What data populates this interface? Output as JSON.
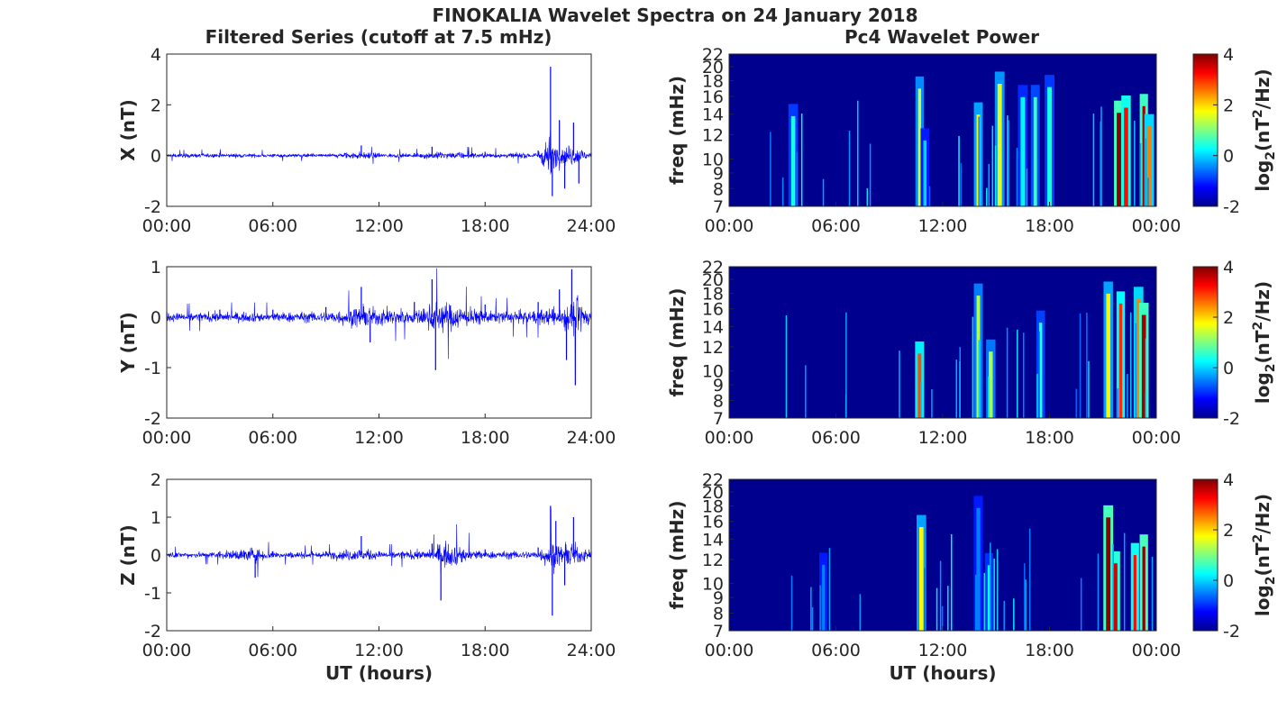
{
  "figure_title": "FINOKALIA Wavelet Spectra on 24 January 2018",
  "left_column_title": "Filtered Series (cutoff at 7.5 mHz)",
  "right_column_title": "Pc4 Wavelet Power",
  "colors": {
    "series": "#0000ff",
    "axis": "#262626",
    "background": "#00008f"
  },
  "chart_data": [
    {
      "type": "line",
      "title": "",
      "xlabel": "",
      "ylabel": "X (nT)",
      "x_ticks": [
        "00:00",
        "06:00",
        "12:00",
        "18:00",
        "24:00"
      ],
      "y_ticks": [
        "-2",
        "0",
        "2",
        "4"
      ],
      "ylim": [
        -2,
        4
      ],
      "xlim_hours": [
        0,
        24
      ],
      "series": [
        {
          "values_hours_nT": [
            [
              0,
              0.05
            ],
            [
              3,
              0.1
            ],
            [
              6,
              0.05
            ],
            [
              9,
              0.05
            ],
            [
              11,
              0.4
            ],
            [
              12,
              0.1
            ],
            [
              14,
              0.1
            ],
            [
              15,
              0.35
            ],
            [
              18,
              0.15
            ],
            [
              21,
              0.2
            ],
            [
              21.7,
              3.5
            ],
            [
              21.8,
              -1.6
            ],
            [
              22.2,
              1.4
            ],
            [
              22.5,
              -1.3
            ],
            [
              23,
              1.3
            ],
            [
              23.3,
              -1.1
            ],
            [
              24,
              0.1
            ]
          ]
        }
      ]
    },
    {
      "type": "line",
      "title": "",
      "xlabel": "",
      "ylabel": "Y (nT)",
      "x_ticks": [
        "00:00",
        "06:00",
        "12:00",
        "18:00",
        "24:00"
      ],
      "y_ticks": [
        "-2",
        "-1",
        "0",
        "1"
      ],
      "ylim": [
        -2,
        1
      ],
      "xlim_hours": [
        0,
        24
      ],
      "series": [
        {
          "values_hours_nT": [
            [
              0,
              0.1
            ],
            [
              3,
              0.15
            ],
            [
              6,
              0.15
            ],
            [
              9,
              0.2
            ],
            [
              11,
              0.6
            ],
            [
              11.5,
              -0.5
            ],
            [
              14,
              0.3
            ],
            [
              15,
              0.75
            ],
            [
              15.2,
              -1.05
            ],
            [
              18,
              0.25
            ],
            [
              21,
              0.3
            ],
            [
              22.2,
              0.55
            ],
            [
              22.6,
              -0.85
            ],
            [
              22.9,
              0.95
            ],
            [
              23.1,
              -1.35
            ],
            [
              24,
              0.1
            ]
          ]
        }
      ]
    },
    {
      "type": "line",
      "title": "",
      "xlabel": "UT (hours)",
      "ylabel": "Z (nT)",
      "x_ticks": [
        "00:00",
        "06:00",
        "12:00",
        "18:00",
        "24:00"
      ],
      "y_ticks": [
        "-2",
        "-1",
        "0",
        "1",
        "2"
      ],
      "ylim": [
        -2,
        2
      ],
      "xlim_hours": [
        0,
        24
      ],
      "series": [
        {
          "values_hours_nT": [
            [
              0,
              0.05
            ],
            [
              3,
              0.1
            ],
            [
              5,
              -0.6
            ],
            [
              6,
              0.1
            ],
            [
              9,
              0.1
            ],
            [
              11,
              0.5
            ],
            [
              12,
              0.1
            ],
            [
              15,
              0.3
            ],
            [
              15.5,
              -1.2
            ],
            [
              18,
              0.15
            ],
            [
              21,
              0.2
            ],
            [
              21.7,
              1.3
            ],
            [
              21.8,
              -1.6
            ],
            [
              22,
              0.9
            ],
            [
              22.5,
              -0.8
            ],
            [
              23,
              1.0
            ],
            [
              24,
              0.1
            ]
          ]
        }
      ]
    },
    {
      "type": "heatmap",
      "title": "",
      "xlabel": "",
      "ylabel": "freq (mHz)",
      "x_ticks": [
        "00:00",
        "06:00",
        "12:00",
        "18:00",
        "00:00"
      ],
      "y_ticks": [
        "7",
        "8",
        "9",
        "10",
        "12",
        "14",
        "16",
        "18",
        "20",
        "22"
      ],
      "ylim_mHz": [
        7,
        22
      ],
      "colorbar": {
        "label": "log2(nT2/Hz)",
        "ticks": [
          "-2",
          "0",
          "2",
          "4"
        ],
        "range": [
          -2,
          4
        ]
      },
      "hotspots": [
        [
          3.6,
          0.4
        ],
        [
          10.7,
          1.5
        ],
        [
          11.0,
          0.0
        ],
        [
          14.0,
          1.8
        ],
        [
          15.2,
          1.6
        ],
        [
          16.5,
          0.2
        ],
        [
          17.2,
          0.6
        ],
        [
          18.0,
          0.4
        ],
        [
          21.9,
          3.9
        ],
        [
          22.3,
          3.2
        ],
        [
          23.3,
          3.8
        ],
        [
          23.6,
          2.5
        ]
      ]
    },
    {
      "type": "heatmap",
      "title": "",
      "xlabel": "",
      "ylabel": "freq (mHz)",
      "x_ticks": [
        "00:00",
        "06:00",
        "12:00",
        "18:00",
        "00:00"
      ],
      "y_ticks": [
        "7",
        "8",
        "9",
        "10",
        "12",
        "14",
        "16",
        "18",
        "20",
        "22"
      ],
      "ylim_mHz": [
        7,
        22
      ],
      "colorbar": {
        "label": "log2(nT2/Hz)",
        "ticks": [
          "-2",
          "0",
          "2",
          "4"
        ],
        "range": [
          -2,
          4
        ]
      },
      "hotspots": [
        [
          10.7,
          2.8
        ],
        [
          14.0,
          1.3
        ],
        [
          14.7,
          1.2
        ],
        [
          17.5,
          0.5
        ],
        [
          21.3,
          1.8
        ],
        [
          22.0,
          3.0
        ],
        [
          23.0,
          2.5
        ],
        [
          23.3,
          3.8
        ]
      ]
    },
    {
      "type": "heatmap",
      "title": "",
      "xlabel": "UT (hours)",
      "ylabel": "freq (mHz)",
      "x_ticks": [
        "00:00",
        "06:00",
        "12:00",
        "18:00",
        "00:00"
      ],
      "y_ticks": [
        "7",
        "8",
        "9",
        "10",
        "12",
        "14",
        "16",
        "18",
        "20",
        "22"
      ],
      "ylim_mHz": [
        7,
        22
      ],
      "colorbar": {
        "label": "log2(nT2/Hz)",
        "ticks": [
          "-2",
          "0",
          "2",
          "4"
        ],
        "range": [
          -2,
          4
        ]
      },
      "hotspots": [
        [
          5.3,
          -0.5
        ],
        [
          10.8,
          1.8
        ],
        [
          14.0,
          -0.5
        ],
        [
          14.6,
          0.3
        ],
        [
          21.3,
          3.9
        ],
        [
          21.7,
          3.5
        ],
        [
          22.8,
          3.2
        ],
        [
          23.3,
          3.9
        ]
      ]
    }
  ]
}
